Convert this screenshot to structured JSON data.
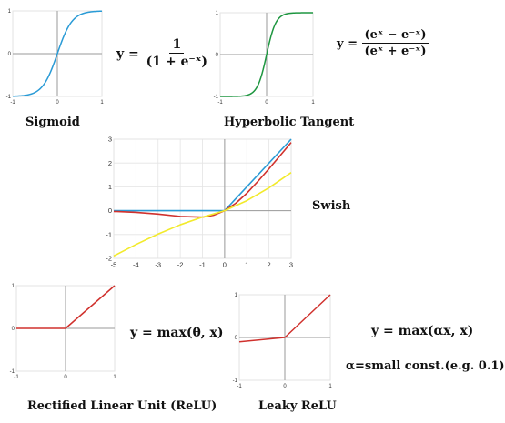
{
  "colors": {
    "blue": "#2a9bd6",
    "green": "#1e9640",
    "red": "#d0312d",
    "yellow": "#f2ea2b",
    "axis": "#9a9a9a",
    "grid": "#e4e4e4",
    "frame": "#d6d6d6"
  },
  "panels": {
    "sigmoid": {
      "caption": "Sigmoid",
      "formula": {
        "lhs": "y =",
        "num": "1",
        "den": "(1 + e⁻ˣ)"
      },
      "chart_data": {
        "type": "line",
        "xlim": [
          -1,
          1
        ],
        "ylim": [
          -1,
          1
        ],
        "xticks": [
          "-1",
          "0",
          "1"
        ],
        "yticks": [
          "-1",
          "0",
          "1"
        ],
        "series": [
          {
            "color": "#2a9bd6",
            "function": "sigmoid",
            "scale": 6
          }
        ]
      }
    },
    "tanh": {
      "caption": "Hyperbolic Tangent",
      "formula": {
        "lhs": "y =",
        "num": "(eˣ − e⁻ˣ)",
        "den": "(eˣ + e⁻ˣ)"
      },
      "chart_data": {
        "type": "line",
        "xlim": [
          -1,
          1
        ],
        "ylim": [
          -1,
          1
        ],
        "xticks": [
          "-1",
          "0",
          "1"
        ],
        "yticks": [
          "-1",
          "0",
          "1"
        ],
        "series": [
          {
            "color": "#1e9640",
            "function": "tanh",
            "scale": 5
          }
        ]
      }
    },
    "swish": {
      "caption": "Swish",
      "chart_data": {
        "type": "line",
        "xlim": [
          -5,
          3
        ],
        "ylim": [
          -2,
          3
        ],
        "xticks": [
          "-5",
          "-4",
          "-3",
          "-2",
          "-1",
          "0",
          "1",
          "2",
          "3"
        ],
        "yticks": [
          "-2",
          "-1",
          "0",
          "1",
          "2",
          "3"
        ],
        "series": [
          {
            "color": "#2a9bd6",
            "points": [
              [
                -5,
                0
              ],
              [
                0,
                0
              ],
              [
                3,
                3
              ]
            ]
          },
          {
            "color": "#d0312d",
            "points": [
              [
                -5,
                -0.03
              ],
              [
                -4,
                -0.07
              ],
              [
                -3,
                -0.14
              ],
              [
                -2,
                -0.24
              ],
              [
                -1,
                -0.27
              ],
              [
                -0.5,
                -0.19
              ],
              [
                0,
                0
              ],
              [
                0.5,
                0.31
              ],
              [
                1,
                0.73
              ],
              [
                1.5,
                1.23
              ],
              [
                2,
                1.76
              ],
              [
                2.5,
                2.31
              ],
              [
                3,
                2.86
              ]
            ]
          },
          {
            "color": "#f2ea2b",
            "points": [
              [
                -5,
                -1.9
              ],
              [
                -4,
                -1.42
              ],
              [
                -3,
                -0.98
              ],
              [
                -2,
                -0.59
              ],
              [
                -1,
                -0.27
              ],
              [
                0,
                0
              ],
              [
                1,
                0.42
              ],
              [
                2,
                0.96
              ],
              [
                3,
                1.6
              ]
            ]
          }
        ]
      }
    },
    "relu": {
      "caption": "Rectified Linear Unit (ReLU)",
      "formula": {
        "text": "y = max(θ, x)"
      },
      "chart_data": {
        "type": "line",
        "xlim": [
          -1,
          1
        ],
        "ylim": [
          -1,
          1
        ],
        "xticks": [
          "-1",
          "0",
          "1"
        ],
        "yticks": [
          "-1",
          "0",
          "1"
        ],
        "series": [
          {
            "color": "#d0312d",
            "points": [
              [
                -1,
                0
              ],
              [
                0,
                0
              ],
              [
                1,
                1
              ]
            ]
          }
        ]
      }
    },
    "leaky": {
      "caption": "Leaky ReLU",
      "formula": {
        "text": "y = max(αx, x)",
        "note": "α=small const.(e.g. 0.1)"
      },
      "chart_data": {
        "type": "line",
        "xlim": [
          -1,
          1
        ],
        "ylim": [
          -1,
          1
        ],
        "xticks": [
          "-1",
          "0",
          "1"
        ],
        "yticks": [
          "-1",
          "0",
          "1"
        ],
        "series": [
          {
            "color": "#d0312d",
            "points": [
              [
                -1,
                -0.1
              ],
              [
                0,
                0
              ],
              [
                1,
                1
              ]
            ]
          }
        ]
      }
    }
  }
}
